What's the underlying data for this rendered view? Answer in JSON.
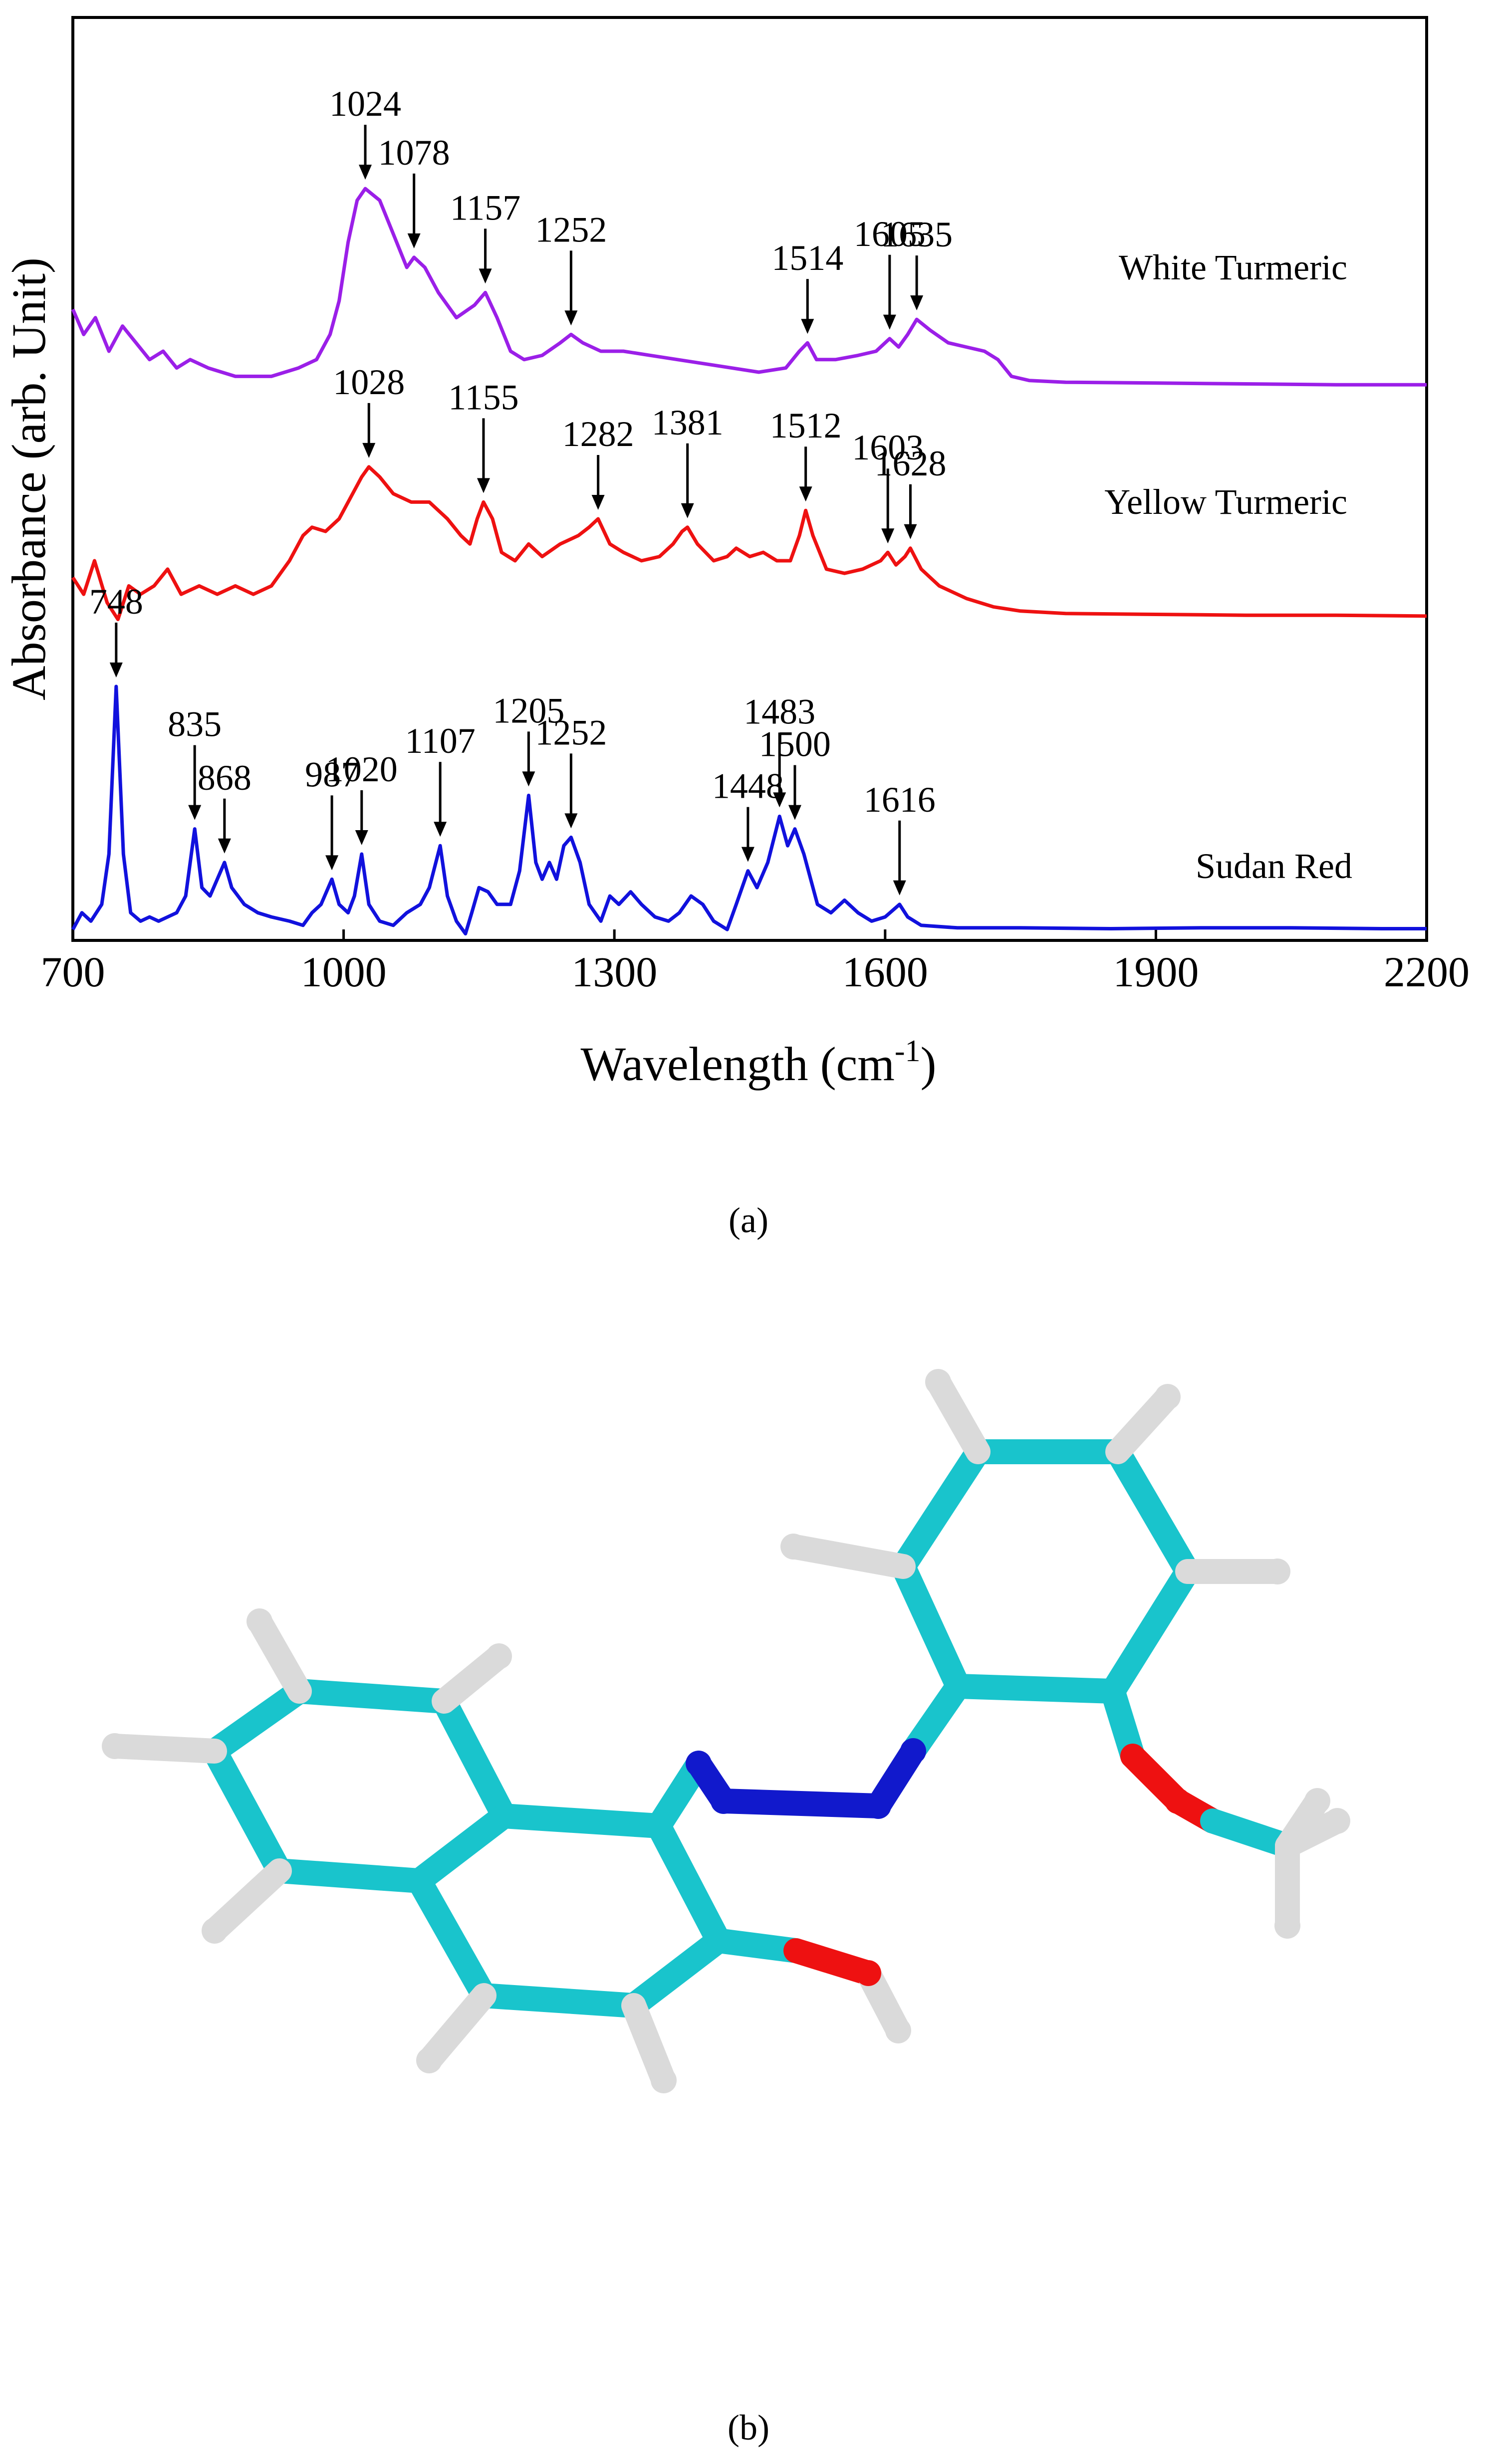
{
  "figure": {
    "panel_a_caption": "(a)",
    "panel_b_caption": "(b)",
    "colors": {
      "white_turmeric": "#9b1fe8",
      "yellow_turmeric": "#ee1111",
      "sudan_red": "#1111dd",
      "carbon": "#19c4cc",
      "hydrogen": "#dadada",
      "nitrogen": "#1119cc",
      "oxygen": "#ee1111"
    }
  },
  "chart_data": {
    "type": "line",
    "xlabel": "Wavelength (cm",
    "xlabel_superscript": "-1",
    "xlabel_suffix": ")",
    "ylabel": "Absorbance (arb. Unit)",
    "xlim": [
      700,
      2200
    ],
    "ylim": [
      0,
      1
    ],
    "x_ticks": [
      700,
      1000,
      1300,
      1600,
      1900,
      2200
    ],
    "grid": false,
    "series": [
      {
        "name": "White Turmeric",
        "baseline": 0.66,
        "points": [
          [
            700,
            0.75
          ],
          [
            712,
            0.72
          ],
          [
            725,
            0.74
          ],
          [
            740,
            0.7
          ],
          [
            755,
            0.73
          ],
          [
            770,
            0.71
          ],
          [
            785,
            0.69
          ],
          [
            800,
            0.7
          ],
          [
            815,
            0.68
          ],
          [
            830,
            0.69
          ],
          [
            850,
            0.68
          ],
          [
            880,
            0.67
          ],
          [
            920,
            0.67
          ],
          [
            950,
            0.68
          ],
          [
            970,
            0.69
          ],
          [
            985,
            0.72
          ],
          [
            995,
            0.76
          ],
          [
            1005,
            0.83
          ],
          [
            1015,
            0.88
          ],
          [
            1024,
            0.894
          ],
          [
            1040,
            0.88
          ],
          [
            1055,
            0.84
          ],
          [
            1070,
            0.8
          ],
          [
            1078,
            0.812
          ],
          [
            1090,
            0.8
          ],
          [
            1105,
            0.77
          ],
          [
            1125,
            0.74
          ],
          [
            1145,
            0.755
          ],
          [
            1157,
            0.77
          ],
          [
            1170,
            0.74
          ],
          [
            1185,
            0.7
          ],
          [
            1200,
            0.69
          ],
          [
            1220,
            0.695
          ],
          [
            1240,
            0.71
          ],
          [
            1252,
            0.72
          ],
          [
            1265,
            0.71
          ],
          [
            1285,
            0.7
          ],
          [
            1310,
            0.7
          ],
          [
            1340,
            0.695
          ],
          [
            1370,
            0.69
          ],
          [
            1400,
            0.685
          ],
          [
            1430,
            0.68
          ],
          [
            1460,
            0.675
          ],
          [
            1490,
            0.68
          ],
          [
            1505,
            0.7
          ],
          [
            1514,
            0.71
          ],
          [
            1524,
            0.69
          ],
          [
            1545,
            0.69
          ],
          [
            1570,
            0.695
          ],
          [
            1590,
            0.7
          ],
          [
            1605,
            0.715
          ],
          [
            1615,
            0.705
          ],
          [
            1625,
            0.72
          ],
          [
            1635,
            0.738
          ],
          [
            1650,
            0.725
          ],
          [
            1670,
            0.71
          ],
          [
            1690,
            0.705
          ],
          [
            1710,
            0.7
          ],
          [
            1725,
            0.69
          ],
          [
            1740,
            0.67
          ],
          [
            1760,
            0.665
          ],
          [
            1800,
            0.663
          ],
          [
            1900,
            0.662
          ],
          [
            2000,
            0.661
          ],
          [
            2100,
            0.66
          ],
          [
            2200,
            0.66
          ]
        ],
        "peaks": [
          1024,
          1078,
          1157,
          1252,
          1514,
          1605,
          1635
        ]
      },
      {
        "name": "Yellow Turmeric",
        "baseline": 0.385,
        "points": [
          [
            700,
            0.43
          ],
          [
            712,
            0.41
          ],
          [
            724,
            0.45
          ],
          [
            738,
            0.4
          ],
          [
            750,
            0.38
          ],
          [
            762,
            0.42
          ],
          [
            775,
            0.41
          ],
          [
            790,
            0.42
          ],
          [
            805,
            0.44
          ],
          [
            820,
            0.41
          ],
          [
            840,
            0.42
          ],
          [
            860,
            0.41
          ],
          [
            880,
            0.42
          ],
          [
            900,
            0.41
          ],
          [
            920,
            0.42
          ],
          [
            940,
            0.45
          ],
          [
            955,
            0.48
          ],
          [
            965,
            0.49
          ],
          [
            980,
            0.485
          ],
          [
            995,
            0.5
          ],
          [
            1010,
            0.53
          ],
          [
            1020,
            0.55
          ],
          [
            1028,
            0.562
          ],
          [
            1040,
            0.55
          ],
          [
            1055,
            0.53
          ],
          [
            1075,
            0.52
          ],
          [
            1095,
            0.52
          ],
          [
            1115,
            0.5
          ],
          [
            1130,
            0.48
          ],
          [
            1140,
            0.47
          ],
          [
            1148,
            0.5
          ],
          [
            1155,
            0.52
          ],
          [
            1165,
            0.5
          ],
          [
            1175,
            0.46
          ],
          [
            1190,
            0.45
          ],
          [
            1205,
            0.47
          ],
          [
            1220,
            0.455
          ],
          [
            1240,
            0.47
          ],
          [
            1260,
            0.48
          ],
          [
            1272,
            0.49
          ],
          [
            1282,
            0.5
          ],
          [
            1295,
            0.47
          ],
          [
            1310,
            0.46
          ],
          [
            1330,
            0.45
          ],
          [
            1350,
            0.455
          ],
          [
            1365,
            0.47
          ],
          [
            1375,
            0.485
          ],
          [
            1381,
            0.49
          ],
          [
            1392,
            0.47
          ],
          [
            1410,
            0.45
          ],
          [
            1425,
            0.455
          ],
          [
            1435,
            0.465
          ],
          [
            1450,
            0.455
          ],
          [
            1465,
            0.46
          ],
          [
            1480,
            0.45
          ],
          [
            1495,
            0.45
          ],
          [
            1505,
            0.48
          ],
          [
            1512,
            0.51
          ],
          [
            1520,
            0.48
          ],
          [
            1535,
            0.44
          ],
          [
            1555,
            0.435
          ],
          [
            1575,
            0.44
          ],
          [
            1595,
            0.45
          ],
          [
            1603,
            0.46
          ],
          [
            1612,
            0.445
          ],
          [
            1622,
            0.455
          ],
          [
            1628,
            0.465
          ],
          [
            1640,
            0.44
          ],
          [
            1660,
            0.42
          ],
          [
            1690,
            0.405
          ],
          [
            1720,
            0.395
          ],
          [
            1750,
            0.39
          ],
          [
            1800,
            0.387
          ],
          [
            1900,
            0.386
          ],
          [
            2000,
            0.385
          ],
          [
            2100,
            0.385
          ],
          [
            2200,
            0.384
          ]
        ],
        "peaks": [
          1028,
          1155,
          1282,
          1381,
          1512,
          1603,
          1628
        ]
      },
      {
        "name": "Sudan Red",
        "baseline": 0.012,
        "points": [
          [
            700,
            0.01
          ],
          [
            710,
            0.03
          ],
          [
            720,
            0.02
          ],
          [
            732,
            0.04
          ],
          [
            740,
            0.1
          ],
          [
            748,
            0.3
          ],
          [
            756,
            0.1
          ],
          [
            764,
            0.03
          ],
          [
            775,
            0.02
          ],
          [
            785,
            0.025
          ],
          [
            795,
            0.02
          ],
          [
            805,
            0.025
          ],
          [
            815,
            0.03
          ],
          [
            825,
            0.05
          ],
          [
            835,
            0.13
          ],
          [
            843,
            0.06
          ],
          [
            852,
            0.05
          ],
          [
            860,
            0.07
          ],
          [
            868,
            0.09
          ],
          [
            876,
            0.06
          ],
          [
            890,
            0.04
          ],
          [
            905,
            0.03
          ],
          [
            920,
            0.025
          ],
          [
            940,
            0.02
          ],
          [
            955,
            0.015
          ],
          [
            965,
            0.03
          ],
          [
            975,
            0.04
          ],
          [
            987,
            0.07
          ],
          [
            995,
            0.04
          ],
          [
            1005,
            0.03
          ],
          [
            1012,
            0.05
          ],
          [
            1020,
            0.1
          ],
          [
            1028,
            0.04
          ],
          [
            1040,
            0.02
          ],
          [
            1055,
            0.015
          ],
          [
            1070,
            0.03
          ],
          [
            1085,
            0.04
          ],
          [
            1095,
            0.06
          ],
          [
            1107,
            0.11
          ],
          [
            1115,
            0.05
          ],
          [
            1125,
            0.02
          ],
          [
            1135,
            0.005
          ],
          [
            1142,
            0.03
          ],
          [
            1150,
            0.06
          ],
          [
            1160,
            0.055
          ],
          [
            1170,
            0.04
          ],
          [
            1185,
            0.04
          ],
          [
            1195,
            0.08
          ],
          [
            1205,
            0.17
          ],
          [
            1213,
            0.09
          ],
          [
            1220,
            0.07
          ],
          [
            1228,
            0.09
          ],
          [
            1236,
            0.07
          ],
          [
            1244,
            0.11
          ],
          [
            1252,
            0.12
          ],
          [
            1262,
            0.09
          ],
          [
            1272,
            0.04
          ],
          [
            1285,
            0.02
          ],
          [
            1295,
            0.05
          ],
          [
            1305,
            0.04
          ],
          [
            1318,
            0.055
          ],
          [
            1330,
            0.04
          ],
          [
            1345,
            0.025
          ],
          [
            1360,
            0.02
          ],
          [
            1372,
            0.03
          ],
          [
            1385,
            0.05
          ],
          [
            1398,
            0.04
          ],
          [
            1410,
            0.02
          ],
          [
            1425,
            0.01
          ],
          [
            1435,
            0.04
          ],
          [
            1448,
            0.08
          ],
          [
            1458,
            0.06
          ],
          [
            1470,
            0.09
          ],
          [
            1483,
            0.145
          ],
          [
            1492,
            0.11
          ],
          [
            1500,
            0.13
          ],
          [
            1510,
            0.1
          ],
          [
            1525,
            0.04
          ],
          [
            1540,
            0.03
          ],
          [
            1555,
            0.045
          ],
          [
            1570,
            0.03
          ],
          [
            1585,
            0.02
          ],
          [
            1600,
            0.025
          ],
          [
            1616,
            0.04
          ],
          [
            1625,
            0.025
          ],
          [
            1640,
            0.015
          ],
          [
            1680,
            0.012
          ],
          [
            1750,
            0.012
          ],
          [
            1850,
            0.011
          ],
          [
            1950,
            0.012
          ],
          [
            2050,
            0.012
          ],
          [
            2150,
            0.011
          ],
          [
            2200,
            0.011
          ]
        ],
        "peaks": [
          748,
          835,
          868,
          987,
          1020,
          1107,
          1205,
          1252,
          1448,
          1483,
          1500,
          1616
        ]
      }
    ]
  }
}
